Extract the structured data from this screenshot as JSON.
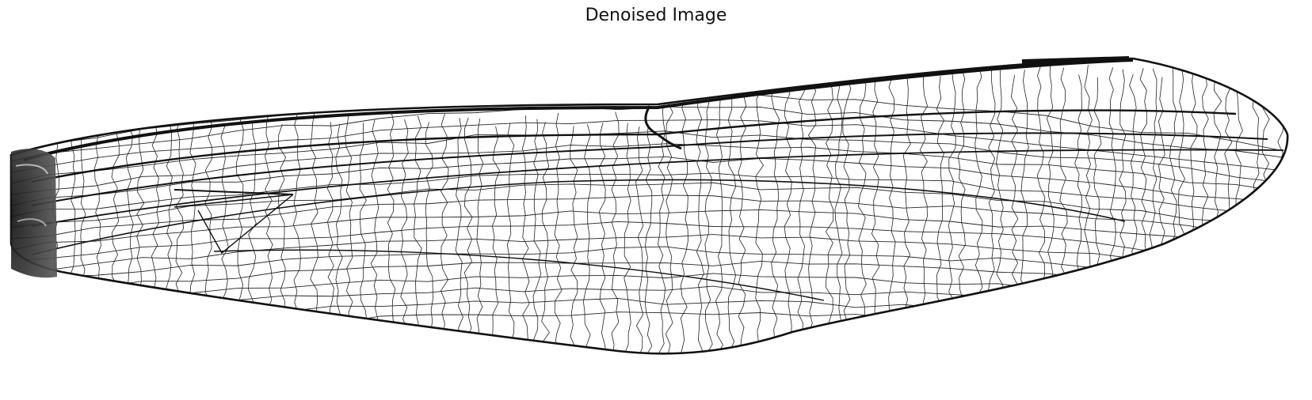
{
  "figure": {
    "title": "Denoised Image"
  },
  "image": {
    "subject": "dragonfly-wing",
    "style": "grayscale"
  },
  "colors": {
    "background": "#ffffff",
    "vein": "#111111",
    "text": "#111111"
  }
}
